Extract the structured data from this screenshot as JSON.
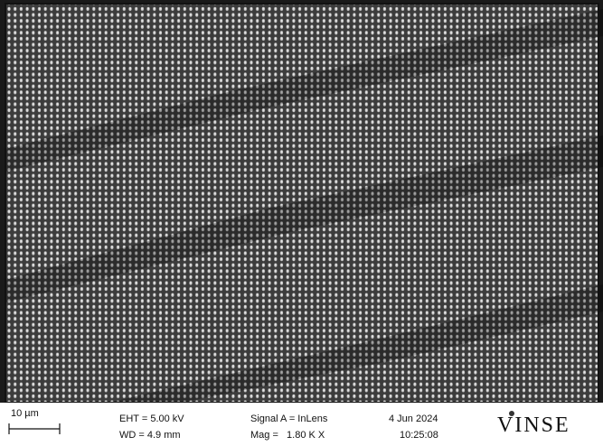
{
  "info_bar": {
    "scale_bar": "10 µm",
    "eht": "EHT = 5.00 kV",
    "wd": "WD = 4.9 mm",
    "signal": "Signal A = InLens",
    "mag": "Mag =   1.80 K X",
    "date": "4 Jun 2024",
    "time": "10:25:08",
    "logo": "VINSE"
  }
}
